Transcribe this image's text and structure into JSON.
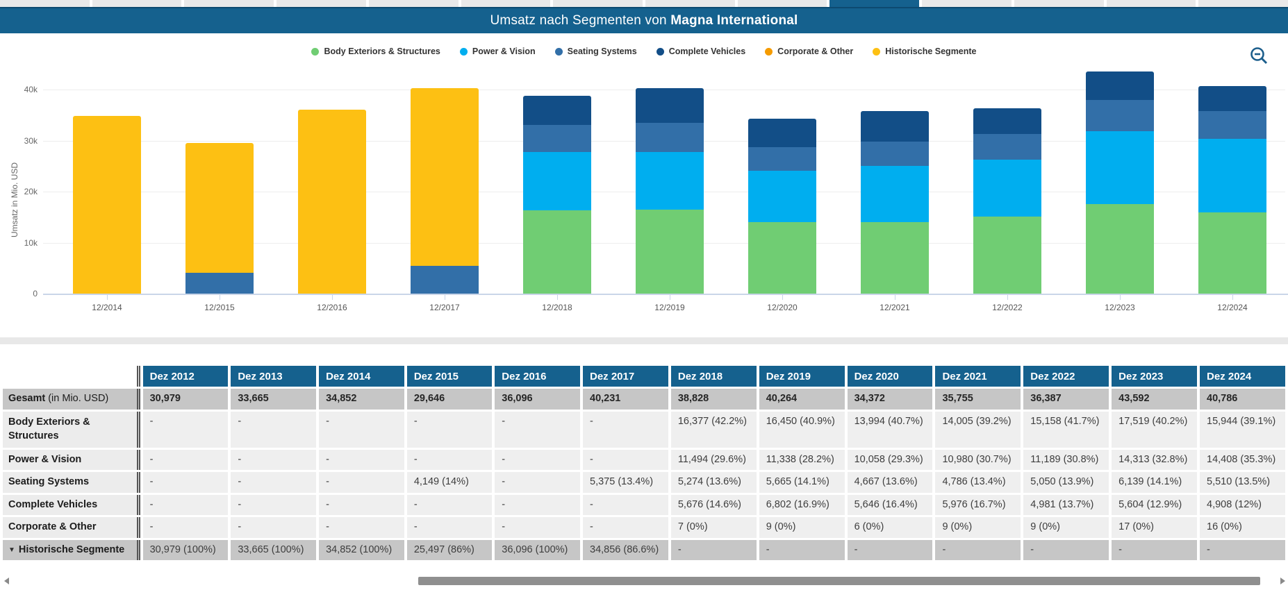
{
  "tabs": {
    "count": 14,
    "active_index": 9
  },
  "titlebar": {
    "title_prefix": "Umsatz nach Segmenten von ",
    "title_company": "Magna International"
  },
  "colors": {
    "accent_blue": "#15618e",
    "body_exteriors": "#70cd73",
    "power_vision": "#00aeef",
    "seating_systems": "#326fa8",
    "complete_vehicles": "#124e87",
    "corporate_other": "#f59b00",
    "historische_segmente": "#fdc013"
  },
  "legend": [
    {
      "label": "Body Exteriors & Structures",
      "color": "#70cd73"
    },
    {
      "label": "Power & Vision",
      "color": "#00aeef"
    },
    {
      "label": "Seating Systems",
      "color": "#326fa8"
    },
    {
      "label": "Complete Vehicles",
      "color": "#124e87"
    },
    {
      "label": "Corporate & Other",
      "color": "#f59b00"
    },
    {
      "label": "Historische Segmente",
      "color": "#fdc013"
    }
  ],
  "chart_data": {
    "type": "bar",
    "stacked": true,
    "categories": [
      "12/2014",
      "12/2015",
      "12/2016",
      "12/2017",
      "12/2018",
      "12/2019",
      "12/2020",
      "12/2021",
      "12/2022",
      "12/2023",
      "12/2024"
    ],
    "series": [
      {
        "name": "Body Exteriors & Structures",
        "color": "#70cd73",
        "values": [
          0,
          0,
          0,
          0,
          16377,
          16450,
          13994,
          14005,
          15158,
          17519,
          15944
        ]
      },
      {
        "name": "Power & Vision",
        "color": "#00aeef",
        "values": [
          0,
          0,
          0,
          0,
          11494,
          11338,
          10058,
          10980,
          11189,
          14313,
          14408
        ]
      },
      {
        "name": "Seating Systems",
        "color": "#326fa8",
        "values": [
          0,
          4149,
          0,
          5375,
          5274,
          5665,
          4667,
          4786,
          5050,
          6139,
          5510
        ]
      },
      {
        "name": "Complete Vehicles",
        "color": "#124e87",
        "values": [
          0,
          0,
          0,
          0,
          5676,
          6802,
          5646,
          5976,
          4981,
          5604,
          4908
        ]
      },
      {
        "name": "Corporate & Other",
        "color": "#f59b00",
        "values": [
          0,
          0,
          0,
          0,
          7,
          9,
          6,
          9,
          9,
          17,
          16
        ]
      },
      {
        "name": "Historische Segmente",
        "color": "#fdc013",
        "values": [
          34852,
          25497,
          36096,
          34856,
          0,
          0,
          0,
          0,
          0,
          0,
          0
        ]
      }
    ],
    "title": "Umsatz nach Segmenten von Magna International",
    "xlabel": "",
    "ylabel": "Umsatz in Mio. USD",
    "ylim": [
      0,
      44000
    ],
    "yticks": [
      0,
      10000,
      20000,
      30000,
      40000
    ],
    "ytick_labels": [
      "0",
      "10k",
      "20k",
      "30k",
      "40k"
    ],
    "grid": true,
    "legend_position": "top"
  },
  "table": {
    "columns": [
      "Dez 2012",
      "Dez 2013",
      "Dez 2014",
      "Dez 2015",
      "Dez 2016",
      "Dez 2017",
      "Dez 2018",
      "Dez 2019",
      "Dez 2020",
      "Dez 2021",
      "Dez 2022",
      "Dez 2023",
      "Dez 2024"
    ],
    "rows": [
      {
        "label": "Gesamt",
        "label_suffix": " (in Mio. USD)",
        "type": "total",
        "bold_values": true,
        "expandable": false,
        "values": [
          "30,979",
          "33,665",
          "34,852",
          "29,646",
          "36,096",
          "40,231",
          "38,828",
          "40,264",
          "34,372",
          "35,755",
          "36,387",
          "43,592",
          "40,786"
        ]
      },
      {
        "label": "Body Exteriors & Structures",
        "label_suffix": "",
        "type": "segment",
        "bold_values": false,
        "expandable": false,
        "values": [
          "-",
          "-",
          "-",
          "-",
          "-",
          "-",
          "16,377 (42.2%)",
          "16,450 (40.9%)",
          "13,994 (40.7%)",
          "14,005 (39.2%)",
          "15,158 (41.7%)",
          "17,519 (40.2%)",
          "15,944 (39.1%)"
        ]
      },
      {
        "label": "Power & Vision",
        "label_suffix": "",
        "type": "segment",
        "bold_values": false,
        "expandable": false,
        "values": [
          "-",
          "-",
          "-",
          "-",
          "-",
          "-",
          "11,494 (29.6%)",
          "11,338 (28.2%)",
          "10,058 (29.3%)",
          "10,980 (30.7%)",
          "11,189 (30.8%)",
          "14,313 (32.8%)",
          "14,408 (35.3%)"
        ]
      },
      {
        "label": "Seating Systems",
        "label_suffix": "",
        "type": "segment",
        "bold_values": false,
        "expandable": false,
        "values": [
          "-",
          "-",
          "-",
          "4,149 (14%)",
          "-",
          "5,375 (13.4%)",
          "5,274 (13.6%)",
          "5,665 (14.1%)",
          "4,667 (13.6%)",
          "4,786 (13.4%)",
          "5,050 (13.9%)",
          "6,139 (14.1%)",
          "5,510 (13.5%)"
        ]
      },
      {
        "label": "Complete Vehicles",
        "label_suffix": "",
        "type": "segment",
        "bold_values": false,
        "expandable": false,
        "values": [
          "-",
          "-",
          "-",
          "-",
          "-",
          "-",
          "5,676 (14.6%)",
          "6,802 (16.9%)",
          "5,646 (16.4%)",
          "5,976 (16.7%)",
          "4,981 (13.7%)",
          "5,604 (12.9%)",
          "4,908 (12%)"
        ]
      },
      {
        "label": "Corporate & Other",
        "label_suffix": "",
        "type": "segment",
        "bold_values": false,
        "expandable": false,
        "values": [
          "-",
          "-",
          "-",
          "-",
          "-",
          "-",
          "7 (0%)",
          "9 (0%)",
          "6 (0%)",
          "9 (0%)",
          "9 (0%)",
          "17 (0%)",
          "16 (0%)"
        ]
      },
      {
        "label": "Historische Segmente",
        "label_suffix": "",
        "type": "total",
        "bold_values": false,
        "expandable": true,
        "values": [
          "30,979 (100%)",
          "33,665 (100%)",
          "34,852 (100%)",
          "25,497 (86%)",
          "36,096 (100%)",
          "34,856 (86.6%)",
          "-",
          "-",
          "-",
          "-",
          "-",
          "-",
          "-"
        ]
      }
    ]
  },
  "icons": {
    "zoom_out": "zoom-out-icon",
    "scroll_left": "scroll-left-arrow-icon",
    "scroll_right": "scroll-right-arrow-icon",
    "expand_row": "chevron-down-icon"
  }
}
